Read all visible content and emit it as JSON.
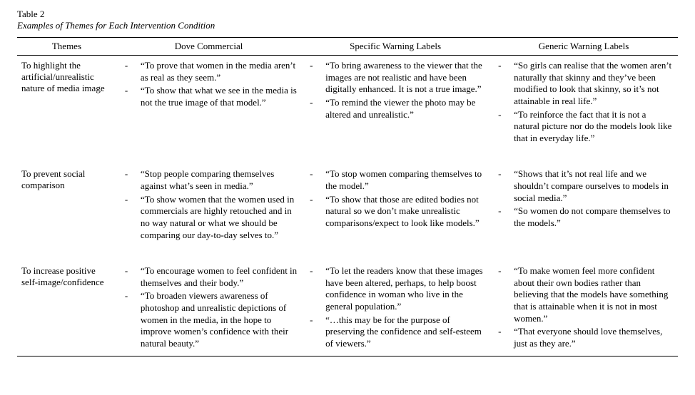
{
  "table": {
    "number": "Table 2",
    "caption": "Examples of Themes for Each Intervention Condition",
    "columns": [
      "Themes",
      "Dove Commercial",
      "Specific Warning Labels",
      "Generic Warning Labels"
    ],
    "rows": [
      {
        "theme": "To highlight the artificial/unrealistic nature of media image",
        "dove": [
          "“To prove that women in the media aren’t as real as they seem.”",
          "“To show that what we see in the media is not the true image of that model.”"
        ],
        "specific": [
          "“To bring awareness to the viewer that the images are not realistic and have been digitally enhanced. It is not a true image.”",
          "“To remind the viewer the photo may be altered and unrealistic.”"
        ],
        "generic": [
          "“So girls can realise that the women aren’t naturally that skinny and they’ve been modified to look that skinny, so it’s not attainable in real life.”",
          "“To reinforce the fact that it is not a natural picture nor do the models look like that in everyday life.”"
        ]
      },
      {
        "theme": "To prevent social comparison",
        "dove": [
          "“Stop people comparing themselves against what’s seen in media.”",
          "“To show women that the women used in commercials are highly retouched and in no way natural or what we should be comparing our day-to-day selves to.”"
        ],
        "specific": [
          "“To stop women comparing themselves to the model.”",
          "“To show that those are edited bodies not natural so we don’t make unrealistic comparisons/expect to look like models.”"
        ],
        "generic": [
          "“Shows that it’s not real life and we shouldn’t compare ourselves to models in social media.”",
          "“So women do not compare themselves to the models.”"
        ]
      },
      {
        "theme": "To increase positive self-image/confidence",
        "dove": [
          "“To encourage women to feel confident in themselves and their body.”",
          "“To broaden viewers awareness of photoshop and unrealistic depictions of women in the media, in the hope to improve women’s confidence with their natural beauty.”"
        ],
        "specific": [
          "“To let the readers know that these images have been altered, perhaps, to help boost confidence in woman who live in the general population.”",
          "“…this may be for the purpose of preserving the confidence and self-esteem of viewers.”"
        ],
        "generic": [
          "“To make women feel more confident about their own bodies rather than believing that the models have something that is attainable when it is not in most women.”",
          "“That everyone should love themselves, just as they are.”"
        ]
      }
    ]
  }
}
